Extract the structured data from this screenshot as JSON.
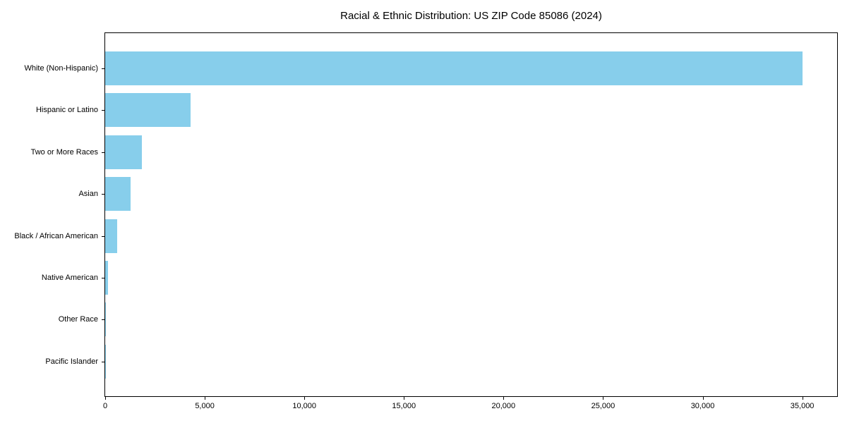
{
  "chart_data": {
    "type": "bar",
    "orientation": "horizontal",
    "title": "Racial & Ethnic Distribution: US ZIP Code 85086 (2024)",
    "xlabel": "",
    "ylabel": "",
    "categories": [
      "White (Non-Hispanic)",
      "Hispanic or Latino",
      "Two or More Races",
      "Asian",
      "Black / African American",
      "Native American",
      "Other Race",
      "Pacific Islander"
    ],
    "values": [
      35000,
      4280,
      1850,
      1290,
      620,
      140,
      35,
      15
    ],
    "xlim": [
      0,
      36750
    ],
    "x_ticks": [
      0,
      5000,
      10000,
      15000,
      20000,
      25000,
      30000,
      35000
    ],
    "x_tick_labels": [
      "0",
      "5,000",
      "10,000",
      "15,000",
      "20,000",
      "25,000",
      "30,000",
      "35,000"
    ],
    "bar_color": "#87CEEB",
    "grid": false,
    "legend": null,
    "background_color": "#ffffff",
    "spine_color": "#000000"
  }
}
